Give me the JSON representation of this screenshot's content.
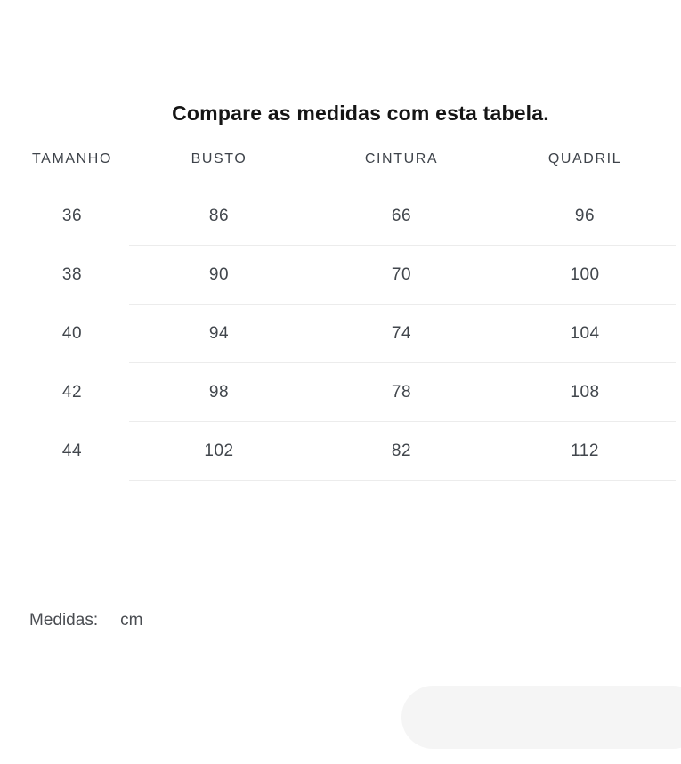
{
  "title": "Compare as medidas com esta tabela.",
  "table": {
    "headers": [
      "TAMANHO",
      "BUSTO",
      "CINTURA",
      "QUADRIL"
    ],
    "rows": [
      [
        "36",
        "86",
        "66",
        "96"
      ],
      [
        "38",
        "90",
        "70",
        "100"
      ],
      [
        "40",
        "94",
        "74",
        "104"
      ],
      [
        "42",
        "98",
        "78",
        "108"
      ],
      [
        "44",
        "102",
        "82",
        "112"
      ]
    ]
  },
  "footer": {
    "label": "Medidas:",
    "value": "cm"
  },
  "colors": {
    "title": "#151515",
    "header-text": "#3e434a",
    "cell-text": "#41464c",
    "footer-text": "#4a4d52",
    "divider": "#ececec",
    "pill": "#f5f5f5"
  }
}
